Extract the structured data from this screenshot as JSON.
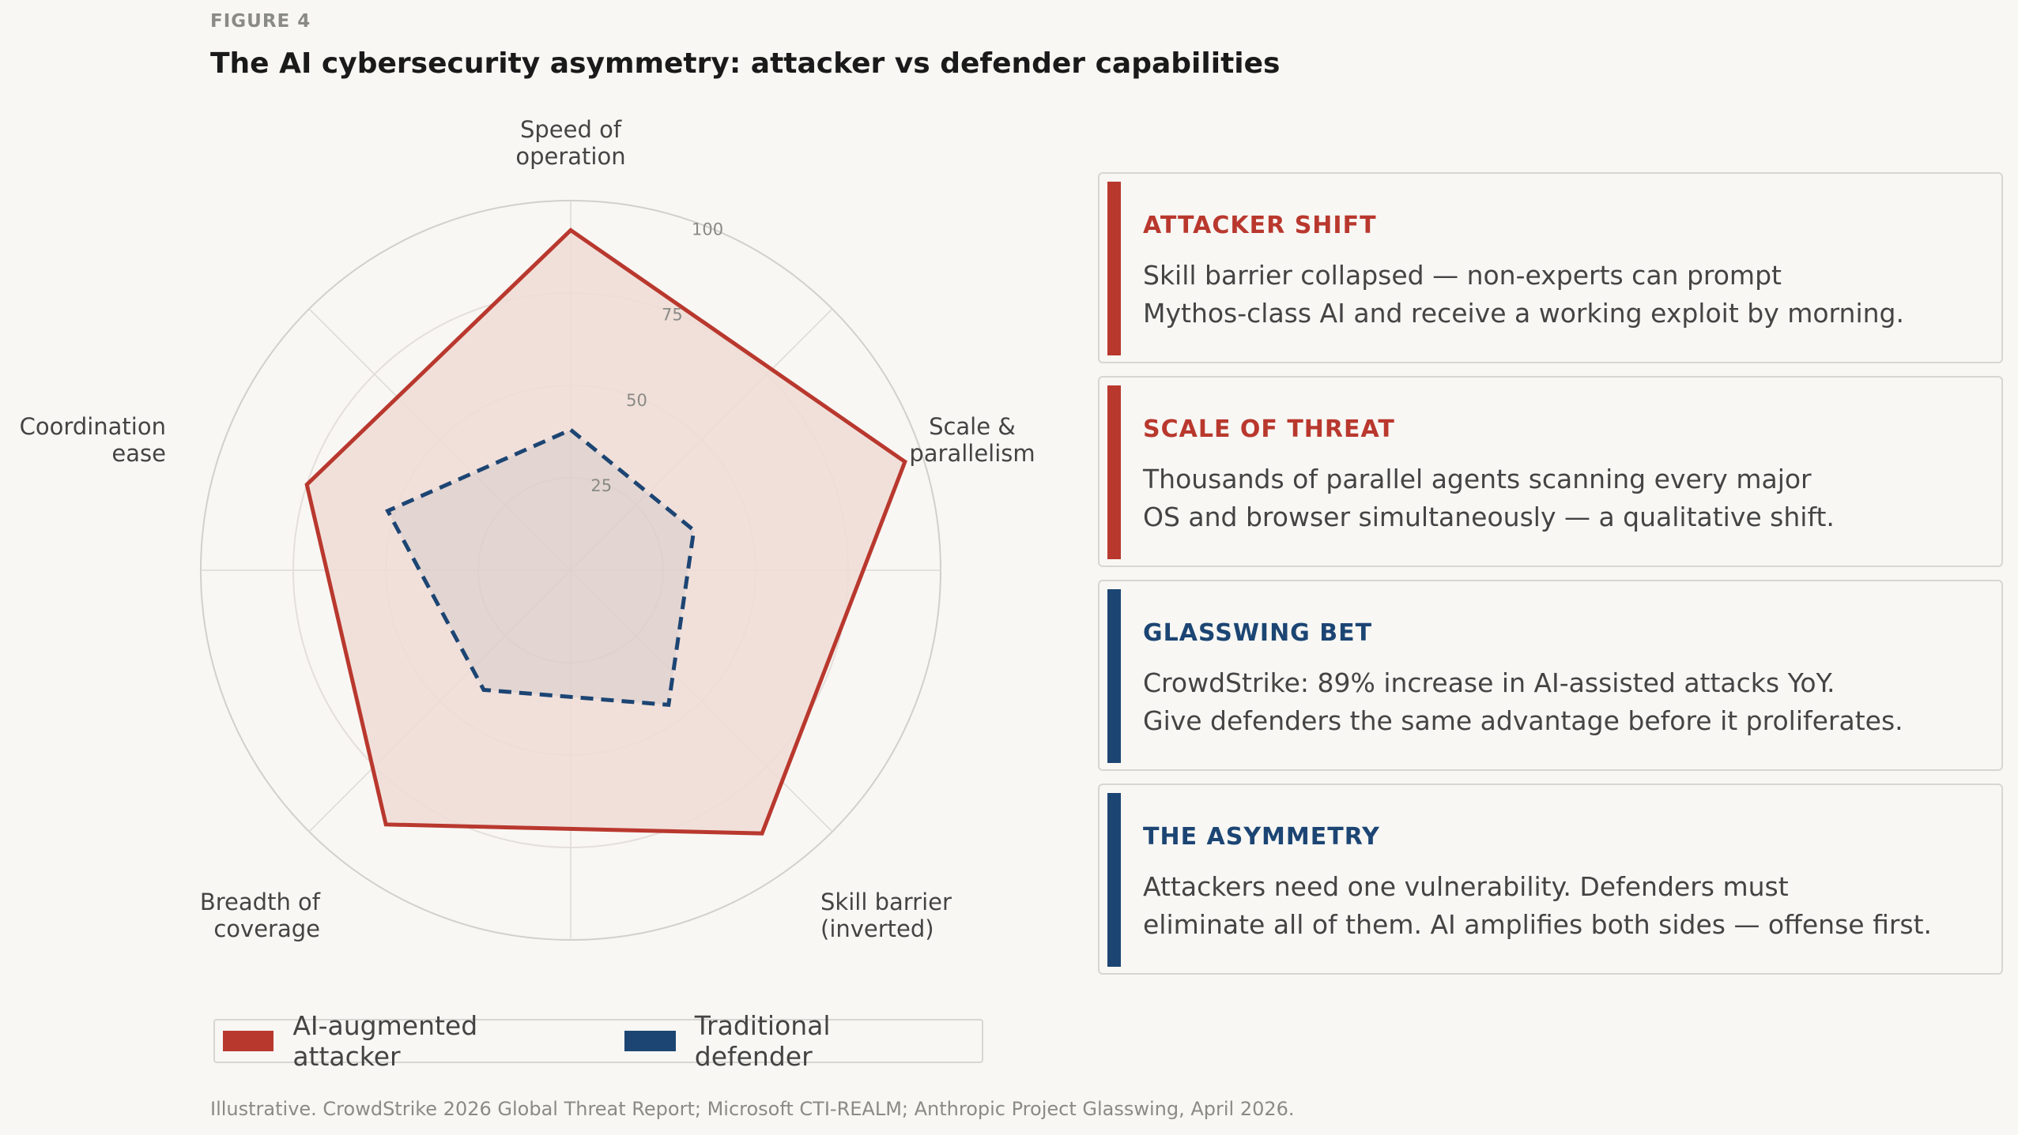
{
  "figure_label": "FIGURE 4",
  "title": "The AI cybersecurity asymmetry: attacker vs defender capabilities",
  "chart_data": {
    "type": "radar",
    "axes": [
      [
        "Speed of",
        "operation"
      ],
      [
        "Scale &",
        "parallelism"
      ],
      [
        "Skill barrier",
        "(inverted)"
      ],
      [
        "Breadth of",
        "coverage"
      ],
      [
        "Coordination",
        "ease"
      ]
    ],
    "rlim": [
      0,
      100
    ],
    "rticks": [
      25,
      50,
      75,
      100
    ],
    "rtick_labels": [
      "25",
      "50",
      "75",
      "100"
    ],
    "series": [
      {
        "name": "AI-augmented attacker",
        "values": [
          92,
          95,
          88,
          85,
          75
        ],
        "color": "#b9382e",
        "fill": "#f0dcd5",
        "style": "solid"
      },
      {
        "name": "Traditional defender",
        "values": [
          38,
          35,
          45,
          40,
          52
        ],
        "color": "#1c4573",
        "style": "dashed"
      }
    ],
    "legend_position": "bottom"
  },
  "cards": [
    {
      "title": "ATTACKER SHIFT",
      "lines": [
        "Skill barrier collapsed — non-experts can prompt",
        "Mythos-class AI and receive a working exploit by morning."
      ],
      "color": "#b9382e"
    },
    {
      "title": "SCALE OF THREAT",
      "lines": [
        "Thousands of parallel agents scanning every major",
        "OS and browser simultaneously — a qualitative shift."
      ],
      "color": "#b9382e"
    },
    {
      "title": "GLASSWING BET",
      "lines": [
        "CrowdStrike: 89% increase in AI-assisted attacks YoY.",
        "Give defenders the same advantage before it proliferates."
      ],
      "color": "#1c4573"
    },
    {
      "title": "THE ASYMMETRY",
      "lines": [
        "Attackers need one vulnerability. Defenders must",
        "eliminate all of them. AI amplifies both sides — offense first."
      ],
      "color": "#1c4573"
    }
  ],
  "source": "Illustrative. CrowdStrike 2026 Global Threat Report; Microsoft CTI-REALM; Anthropic Project Glasswing, April 2026."
}
